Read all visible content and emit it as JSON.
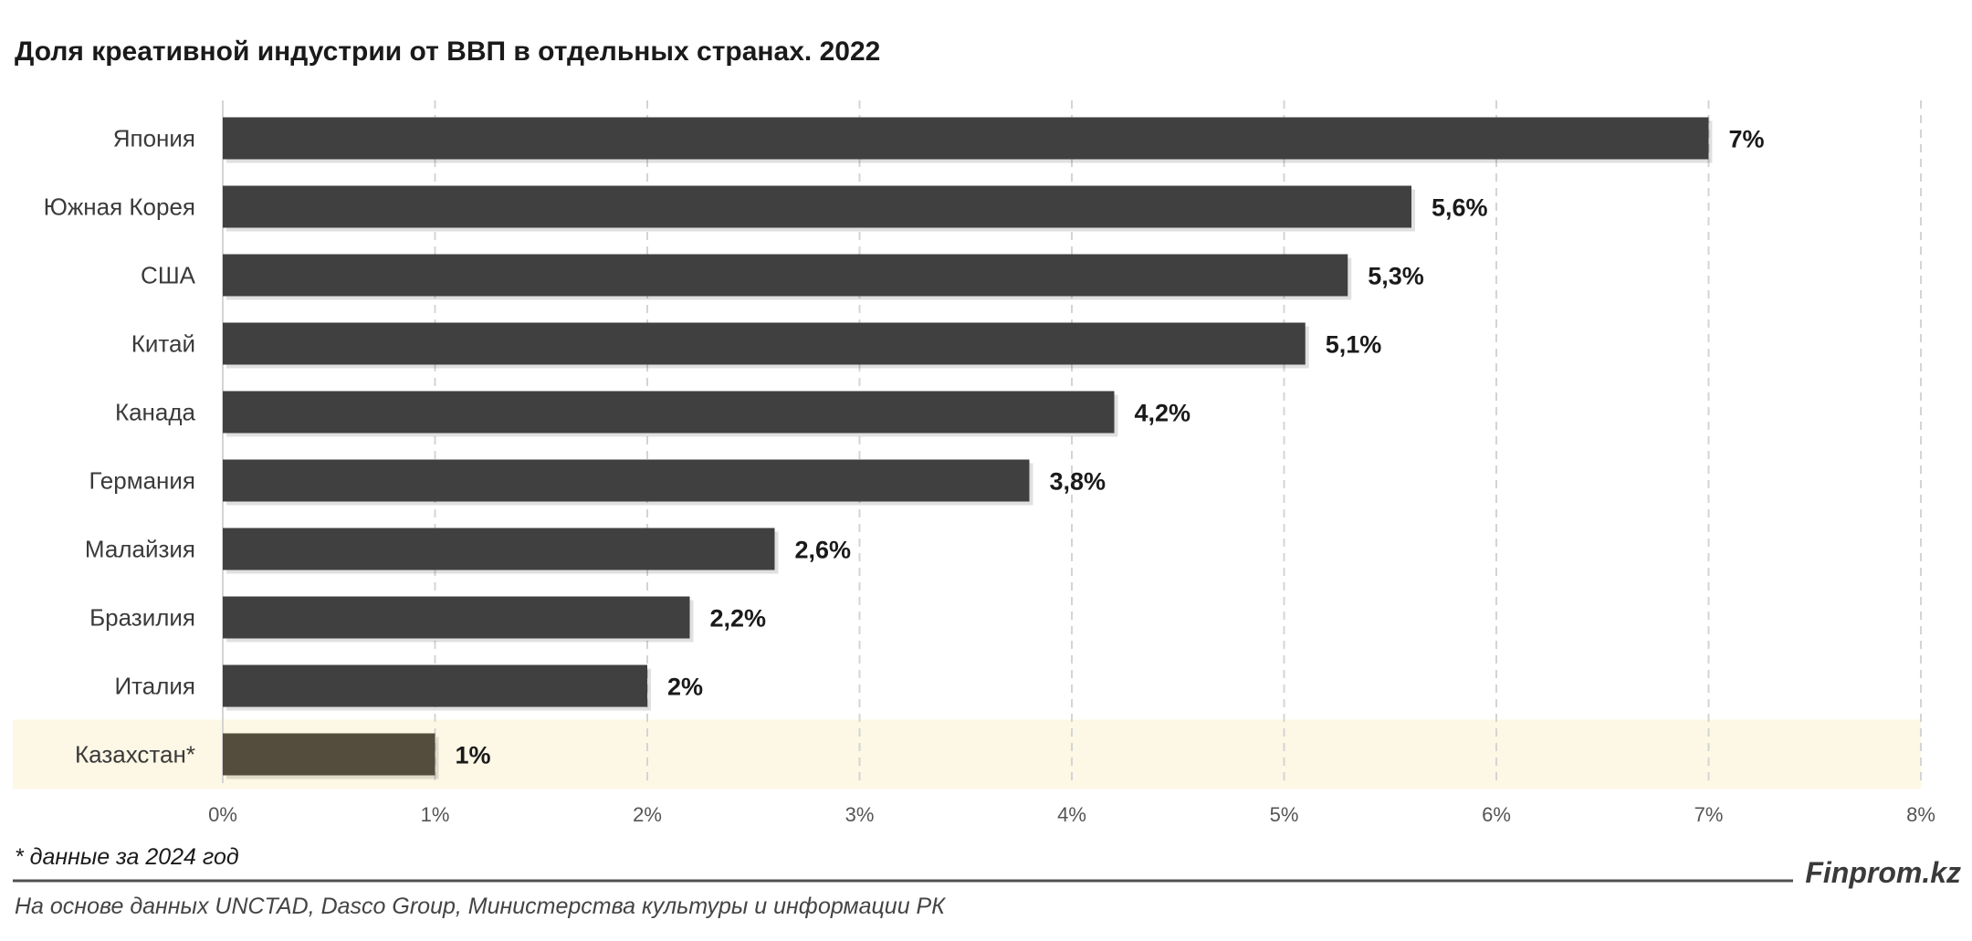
{
  "chart_data": {
    "type": "bar",
    "orientation": "horizontal",
    "title": "Доля креативной индустрии от ВВП в отдельных странах. 2022",
    "categories": [
      "Япония",
      "Южная Корея",
      "США",
      "Китай",
      "Канада",
      "Германия",
      "Малайзия",
      "Бразилия",
      "Италия",
      "Казахстан*"
    ],
    "values": [
      7,
      5.6,
      5.3,
      5.1,
      4.2,
      3.8,
      2.6,
      2.2,
      2,
      1
    ],
    "value_labels": [
      "7%",
      "5,6%",
      "5,3%",
      "5,1%",
      "4,2%",
      "3,8%",
      "2,6%",
      "2,2%",
      "2%",
      "1%"
    ],
    "xlim": [
      0,
      8
    ],
    "x_ticks": [
      "0%",
      "1%",
      "2%",
      "3%",
      "4%",
      "5%",
      "6%",
      "7%",
      "8%"
    ],
    "grid": "vertical dashed",
    "highlighted_category": "Казахстан*",
    "footnote": "* данные за 2024 год",
    "source": "На основе данных UNCTAD, Dasco Group, Министерства культуры и информации РК",
    "brand": "Finprom.kz",
    "colors": {
      "bar": "#404040",
      "bar_highlight": "#544c3c",
      "highlight_band": "#fdf7e5",
      "grid": "#d4d4d4",
      "text": "#1a1a1a",
      "axis_text": "#555555"
    }
  }
}
